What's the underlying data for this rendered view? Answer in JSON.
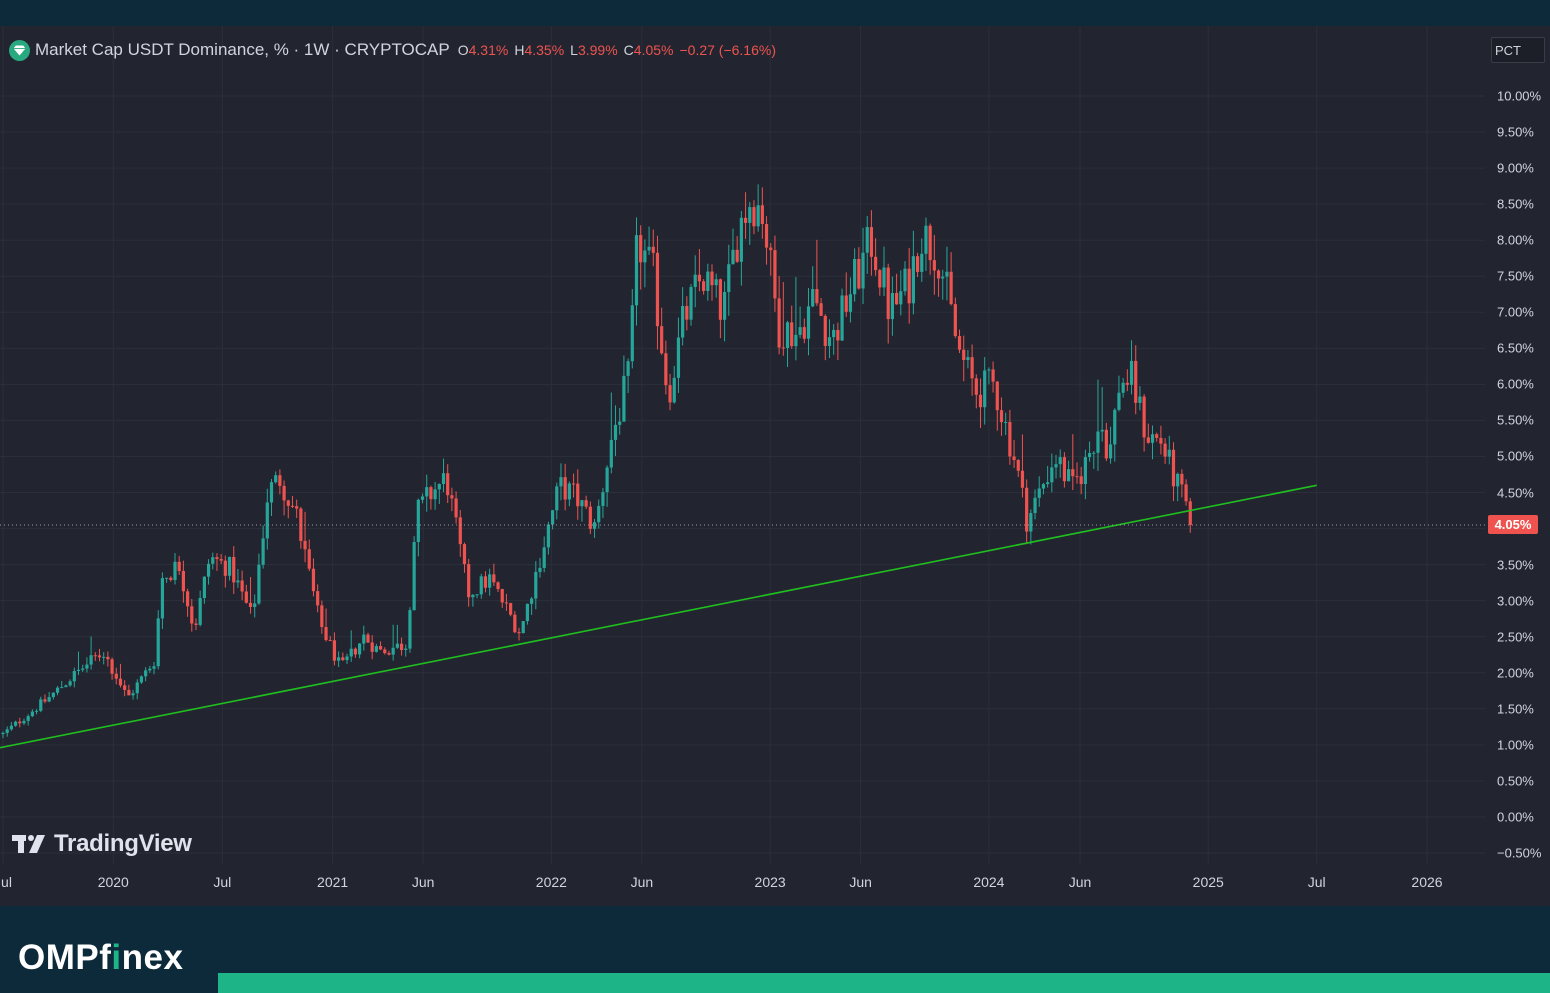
{
  "header": {
    "title": "Market Cap USDT Dominance, % · 1W · CRYPTOCAP",
    "ohlc": {
      "open_label": "O",
      "open_value": "4.31%",
      "high_label": "H",
      "high_value": "4.35%",
      "low_label": "L",
      "low_value": "3.99%",
      "close_label": "C",
      "close_value": "4.05%",
      "change": "−0.27 (−6.16%)"
    },
    "scale_button": "PCT"
  },
  "watermark": "TradingView",
  "brand": {
    "before": "OMPf",
    "dot_letter": "i",
    "after": "nex"
  },
  "colors": {
    "background": "#22252f",
    "up": "#26a69a",
    "down": "#ef5350",
    "trendline": "#1fbf1f",
    "brand_accent": "#1db587"
  },
  "chart_data": {
    "type": "candlestick",
    "title": "Market Cap USDT Dominance, % · 1W · CRYPTOCAP",
    "interval": "1W",
    "ylim": [
      -0.5,
      10.0
    ],
    "y_ticks": [
      "10.00%",
      "9.50%",
      "9.00%",
      "8.50%",
      "8.00%",
      "7.50%",
      "7.00%",
      "6.50%",
      "6.00%",
      "5.50%",
      "5.00%",
      "4.50%",
      "4.00%",
      "3.50%",
      "3.00%",
      "2.50%",
      "2.00%",
      "1.50%",
      "1.00%",
      "0.50%",
      "0.00%",
      "−0.50%"
    ],
    "x_ticks": [
      "Jul",
      "2020",
      "Jul",
      "2021",
      "Jun",
      "2022",
      "Jun",
      "2023",
      "Jun",
      "2024",
      "Jun",
      "2025",
      "Jul",
      "2026"
    ],
    "x_tick_dates": [
      "2019-07-01",
      "2020-01-01",
      "2020-07-01",
      "2021-01-01",
      "2021-06-01",
      "2022-01-01",
      "2022-06-01",
      "2023-01-01",
      "2023-06-01",
      "2024-01-01",
      "2024-06-01",
      "2025-01-01",
      "2025-07-01",
      "2026-01-01"
    ],
    "last_price": 4.05,
    "last_price_label": "4.05%",
    "grid": true,
    "anchors": [
      [
        "2019-07-01",
        1.15
      ],
      [
        "2019-09-15",
        1.65
      ],
      [
        "2019-11-01",
        2.0
      ],
      [
        "2019-12-15",
        2.3
      ],
      [
        "2020-01-25",
        1.65
      ],
      [
        "2020-03-12",
        2.2
      ],
      [
        "2020-03-20",
        3.3
      ],
      [
        "2020-04-20",
        3.5
      ],
      [
        "2020-05-15",
        2.6
      ],
      [
        "2020-06-10",
        3.6
      ],
      [
        "2020-07-15",
        3.45
      ],
      [
        "2020-08-20",
        2.75
      ],
      [
        "2020-09-15",
        4.5
      ],
      [
        "2020-10-05",
        4.7
      ],
      [
        "2020-11-01",
        4.2
      ],
      [
        "2020-12-10",
        2.7
      ],
      [
        "2021-01-15",
        2.05
      ],
      [
        "2021-02-22",
        2.5
      ],
      [
        "2021-03-20",
        2.3
      ],
      [
        "2021-05-05",
        2.4
      ],
      [
        "2021-05-20",
        4.2
      ],
      [
        "2021-06-15",
        4.5
      ],
      [
        "2021-07-10",
        4.7
      ],
      [
        "2021-08-15",
        3.1
      ],
      [
        "2021-09-20",
        3.3
      ],
      [
        "2021-11-10",
        2.55
      ],
      [
        "2021-12-10",
        3.5
      ],
      [
        "2022-01-15",
        4.6
      ],
      [
        "2022-02-10",
        4.45
      ],
      [
        "2022-03-15",
        4.0
      ],
      [
        "2022-04-10",
        5.2
      ],
      [
        "2022-05-10",
        6.1
      ],
      [
        "2022-05-25",
        8.0
      ],
      [
        "2022-06-20",
        7.5
      ],
      [
        "2022-07-15",
        5.85
      ],
      [
        "2022-08-10",
        6.9
      ],
      [
        "2022-09-10",
        7.5
      ],
      [
        "2022-10-15",
        7.0
      ],
      [
        "2022-11-10",
        8.2
      ],
      [
        "2022-12-01",
        8.6
      ],
      [
        "2022-12-20",
        8.4
      ],
      [
        "2023-01-15",
        6.8
      ],
      [
        "2023-02-15",
        6.7
      ],
      [
        "2023-03-15",
        7.2
      ],
      [
        "2023-04-15",
        6.6
      ],
      [
        "2023-05-15",
        7.3
      ],
      [
        "2023-06-20",
        8.0
      ],
      [
        "2023-07-20",
        7.0
      ],
      [
        "2023-08-20",
        7.4
      ],
      [
        "2023-09-10",
        8.1
      ],
      [
        "2023-10-10",
        7.8
      ],
      [
        "2023-11-10",
        6.5
      ],
      [
        "2023-12-10",
        5.9
      ],
      [
        "2024-01-10",
        6.0
      ],
      [
        "2024-02-15",
        4.9
      ],
      [
        "2024-03-05",
        4.1
      ],
      [
        "2024-03-20",
        4.4
      ],
      [
        "2024-04-20",
        5.0
      ],
      [
        "2024-05-20",
        4.55
      ],
      [
        "2024-06-10",
        4.9
      ],
      [
        "2024-07-05",
        5.5
      ],
      [
        "2024-07-20",
        5.0
      ],
      [
        "2024-08-05",
        6.0
      ],
      [
        "2024-08-25",
        6.1
      ],
      [
        "2024-09-20",
        5.3
      ],
      [
        "2024-10-15",
        5.2
      ],
      [
        "2024-11-05",
        4.7
      ],
      [
        "2024-11-25",
        4.31
      ],
      [
        "2024-12-05",
        4.05
      ]
    ],
    "trendline": {
      "points": [
        [
          "2019-06-20",
          0.95
        ],
        [
          "2025-07-01",
          4.6
        ]
      ]
    }
  }
}
